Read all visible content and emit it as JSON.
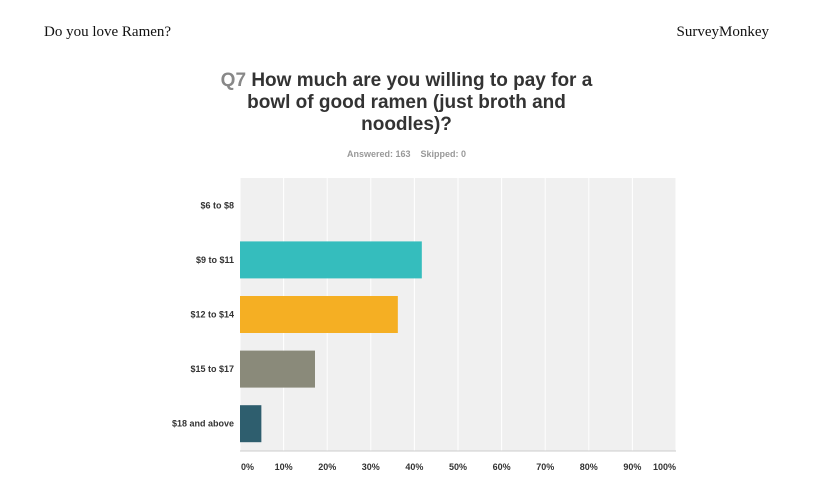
{
  "header": {
    "survey_title": "Do you love Ramen?",
    "brand": "SurveyMonkey"
  },
  "question": {
    "number": "Q7",
    "text_line1": "How much are you willing to pay for a",
    "text_line2": "bowl of good ramen (just broth and",
    "text_line3": "noodles)?"
  },
  "stats": {
    "answered": "Answered: 163",
    "skipped": "Skipped: 0"
  },
  "chart_data": {
    "type": "bar",
    "orientation": "horizontal",
    "categories": [
      "$6 to $8",
      "$9 to $11",
      "$12 to $14",
      "$15 to $17",
      "$18 and above"
    ],
    "values": [
      0,
      41.7,
      36.2,
      17.2,
      4.9
    ],
    "colors": [
      "#35bdbd",
      "#35bdbd",
      "#f5af23",
      "#8a8a7a",
      "#2e5e6e"
    ],
    "x_ticks": [
      "0%",
      "10%",
      "20%",
      "30%",
      "40%",
      "50%",
      "60%",
      "70%",
      "80%",
      "90%",
      "100%"
    ],
    "xlim": [
      0,
      100
    ],
    "grid": true,
    "plot_background": "#f0f0f0"
  }
}
